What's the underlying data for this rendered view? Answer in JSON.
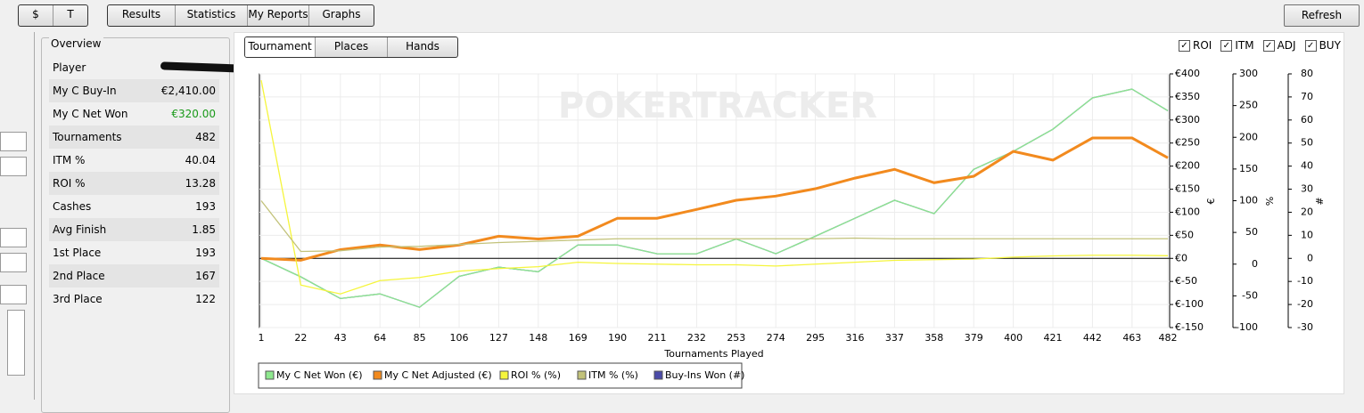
{
  "toolbar": {
    "currency": [
      "$",
      "T"
    ],
    "tabs": [
      "Results",
      "Statistics",
      "My Reports",
      "Graphs"
    ],
    "refresh": "Refresh"
  },
  "overview": {
    "title": "Overview",
    "player_label": "Player",
    "rows": [
      [
        "My C Buy-In",
        "€2,410.00"
      ],
      [
        "My C Net Won",
        "€320.00"
      ],
      [
        "Tournaments",
        "482"
      ],
      [
        "ITM %",
        "40.04"
      ],
      [
        "ROI %",
        "13.28"
      ],
      [
        "Cashes",
        "193"
      ],
      [
        "Avg Finish",
        "1.85"
      ],
      [
        "1st Place",
        "193"
      ],
      [
        "2nd Place",
        "167"
      ],
      [
        "3rd Place",
        "122"
      ]
    ]
  },
  "graph_tabs": [
    "Tournament",
    "Places",
    "Hands"
  ],
  "checkboxes": [
    {
      "label": "ROI",
      "checked": true
    },
    {
      "label": "ITM",
      "checked": true
    },
    {
      "label": "ADJ",
      "checked": true
    },
    {
      "label": "BUY",
      "checked": true
    }
  ],
  "chart_data": {
    "type": "line",
    "watermark": "POKERTRACKER",
    "x_label": "Tournaments Played",
    "grid": true,
    "x": [
      1,
      22,
      43,
      64,
      85,
      106,
      127,
      148,
      169,
      190,
      211,
      232,
      253,
      274,
      295,
      316,
      337,
      358,
      379,
      400,
      421,
      442,
      463,
      482
    ],
    "xlim": [
      1,
      482
    ],
    "xticks": [
      1,
      22,
      43,
      64,
      85,
      106,
      127,
      148,
      169,
      190,
      211,
      232,
      253,
      274,
      295,
      316,
      337,
      358,
      379,
      400,
      421,
      442,
      463,
      482
    ],
    "y_label": "€",
    "ylim": [
      -150,
      400
    ],
    "yticks": [
      {
        "value": 400,
        "label": "€400"
      },
      {
        "value": 350,
        "label": "€350"
      },
      {
        "value": 300,
        "label": "€300"
      },
      {
        "value": 250,
        "label": "€250"
      },
      {
        "value": 200,
        "label": "€200"
      },
      {
        "value": 150,
        "label": "€150"
      },
      {
        "value": 100,
        "label": "€100"
      },
      {
        "value": 50,
        "label": "€50"
      },
      {
        "value": 0,
        "label": "€0"
      },
      {
        "value": -50,
        "label": "€-50"
      },
      {
        "value": -100,
        "label": "€-100"
      },
      {
        "value": -150,
        "label": "€-150"
      }
    ],
    "y2_label": "%",
    "y2lim": [
      -100,
      300
    ],
    "y2ticks": [
      300,
      250,
      200,
      150,
      100,
      50,
      0,
      -50,
      -100
    ],
    "y3_label": "#",
    "y3lim": [
      -30,
      80
    ],
    "y3ticks": [
      80,
      70,
      60,
      50,
      40,
      30,
      20,
      10,
      0,
      -10,
      -20,
      -30
    ],
    "series": [
      {
        "name": "Buy-Ins Won (#)",
        "color": "#4b4ba8",
        "axis": "y3",
        "values": [
          0,
          -8,
          -17.4,
          -15.4,
          -21.2,
          -7.8,
          -3.8,
          -5.8,
          5.8,
          5.8,
          2,
          2,
          8.4,
          2,
          9.6,
          17.4,
          25.2,
          19.4,
          38.6,
          46.4,
          56,
          69.6,
          73.4,
          64
        ]
      },
      {
        "name": "My C Net Won (€)",
        "color": "#8ee88e",
        "values": [
          0,
          -40,
          -87,
          -77,
          -106,
          -39,
          -19,
          -29,
          29,
          29,
          10,
          10,
          42,
          10,
          48,
          87,
          126,
          97,
          193,
          232,
          280,
          348,
          367,
          320
        ]
      },
      {
        "name": "My C Net Adjusted (€)",
        "color": "#f28a1e",
        "values": [
          0,
          -4,
          19,
          29,
          19,
          29,
          48,
          42,
          48,
          87,
          87,
          106,
          126,
          135,
          151,
          174,
          193,
          164,
          178,
          232,
          213,
          261,
          261,
          218
        ]
      },
      {
        "name": "ROI % (%)",
        "color": "#f5f53c",
        "axis": "y2",
        "values": [
          290,
          -33,
          -47,
          -26,
          -21,
          -11,
          -7,
          -4,
          3,
          1,
          0,
          -1,
          -1,
          -3,
          0,
          3,
          6,
          7,
          8,
          11,
          13,
          14,
          14,
          13.28
        ]
      },
      {
        "name": "ITM % (%)",
        "color": "#c2c27a",
        "axis": "y2",
        "values": [
          100,
          20,
          21,
          27,
          28,
          31,
          34,
          36,
          38,
          40,
          40,
          40,
          40,
          40,
          40,
          41,
          40,
          40,
          40,
          40,
          40,
          40,
          40,
          40.04
        ]
      }
    ],
    "legend_order": [
      1,
      2,
      3,
      4,
      0
    ]
  }
}
